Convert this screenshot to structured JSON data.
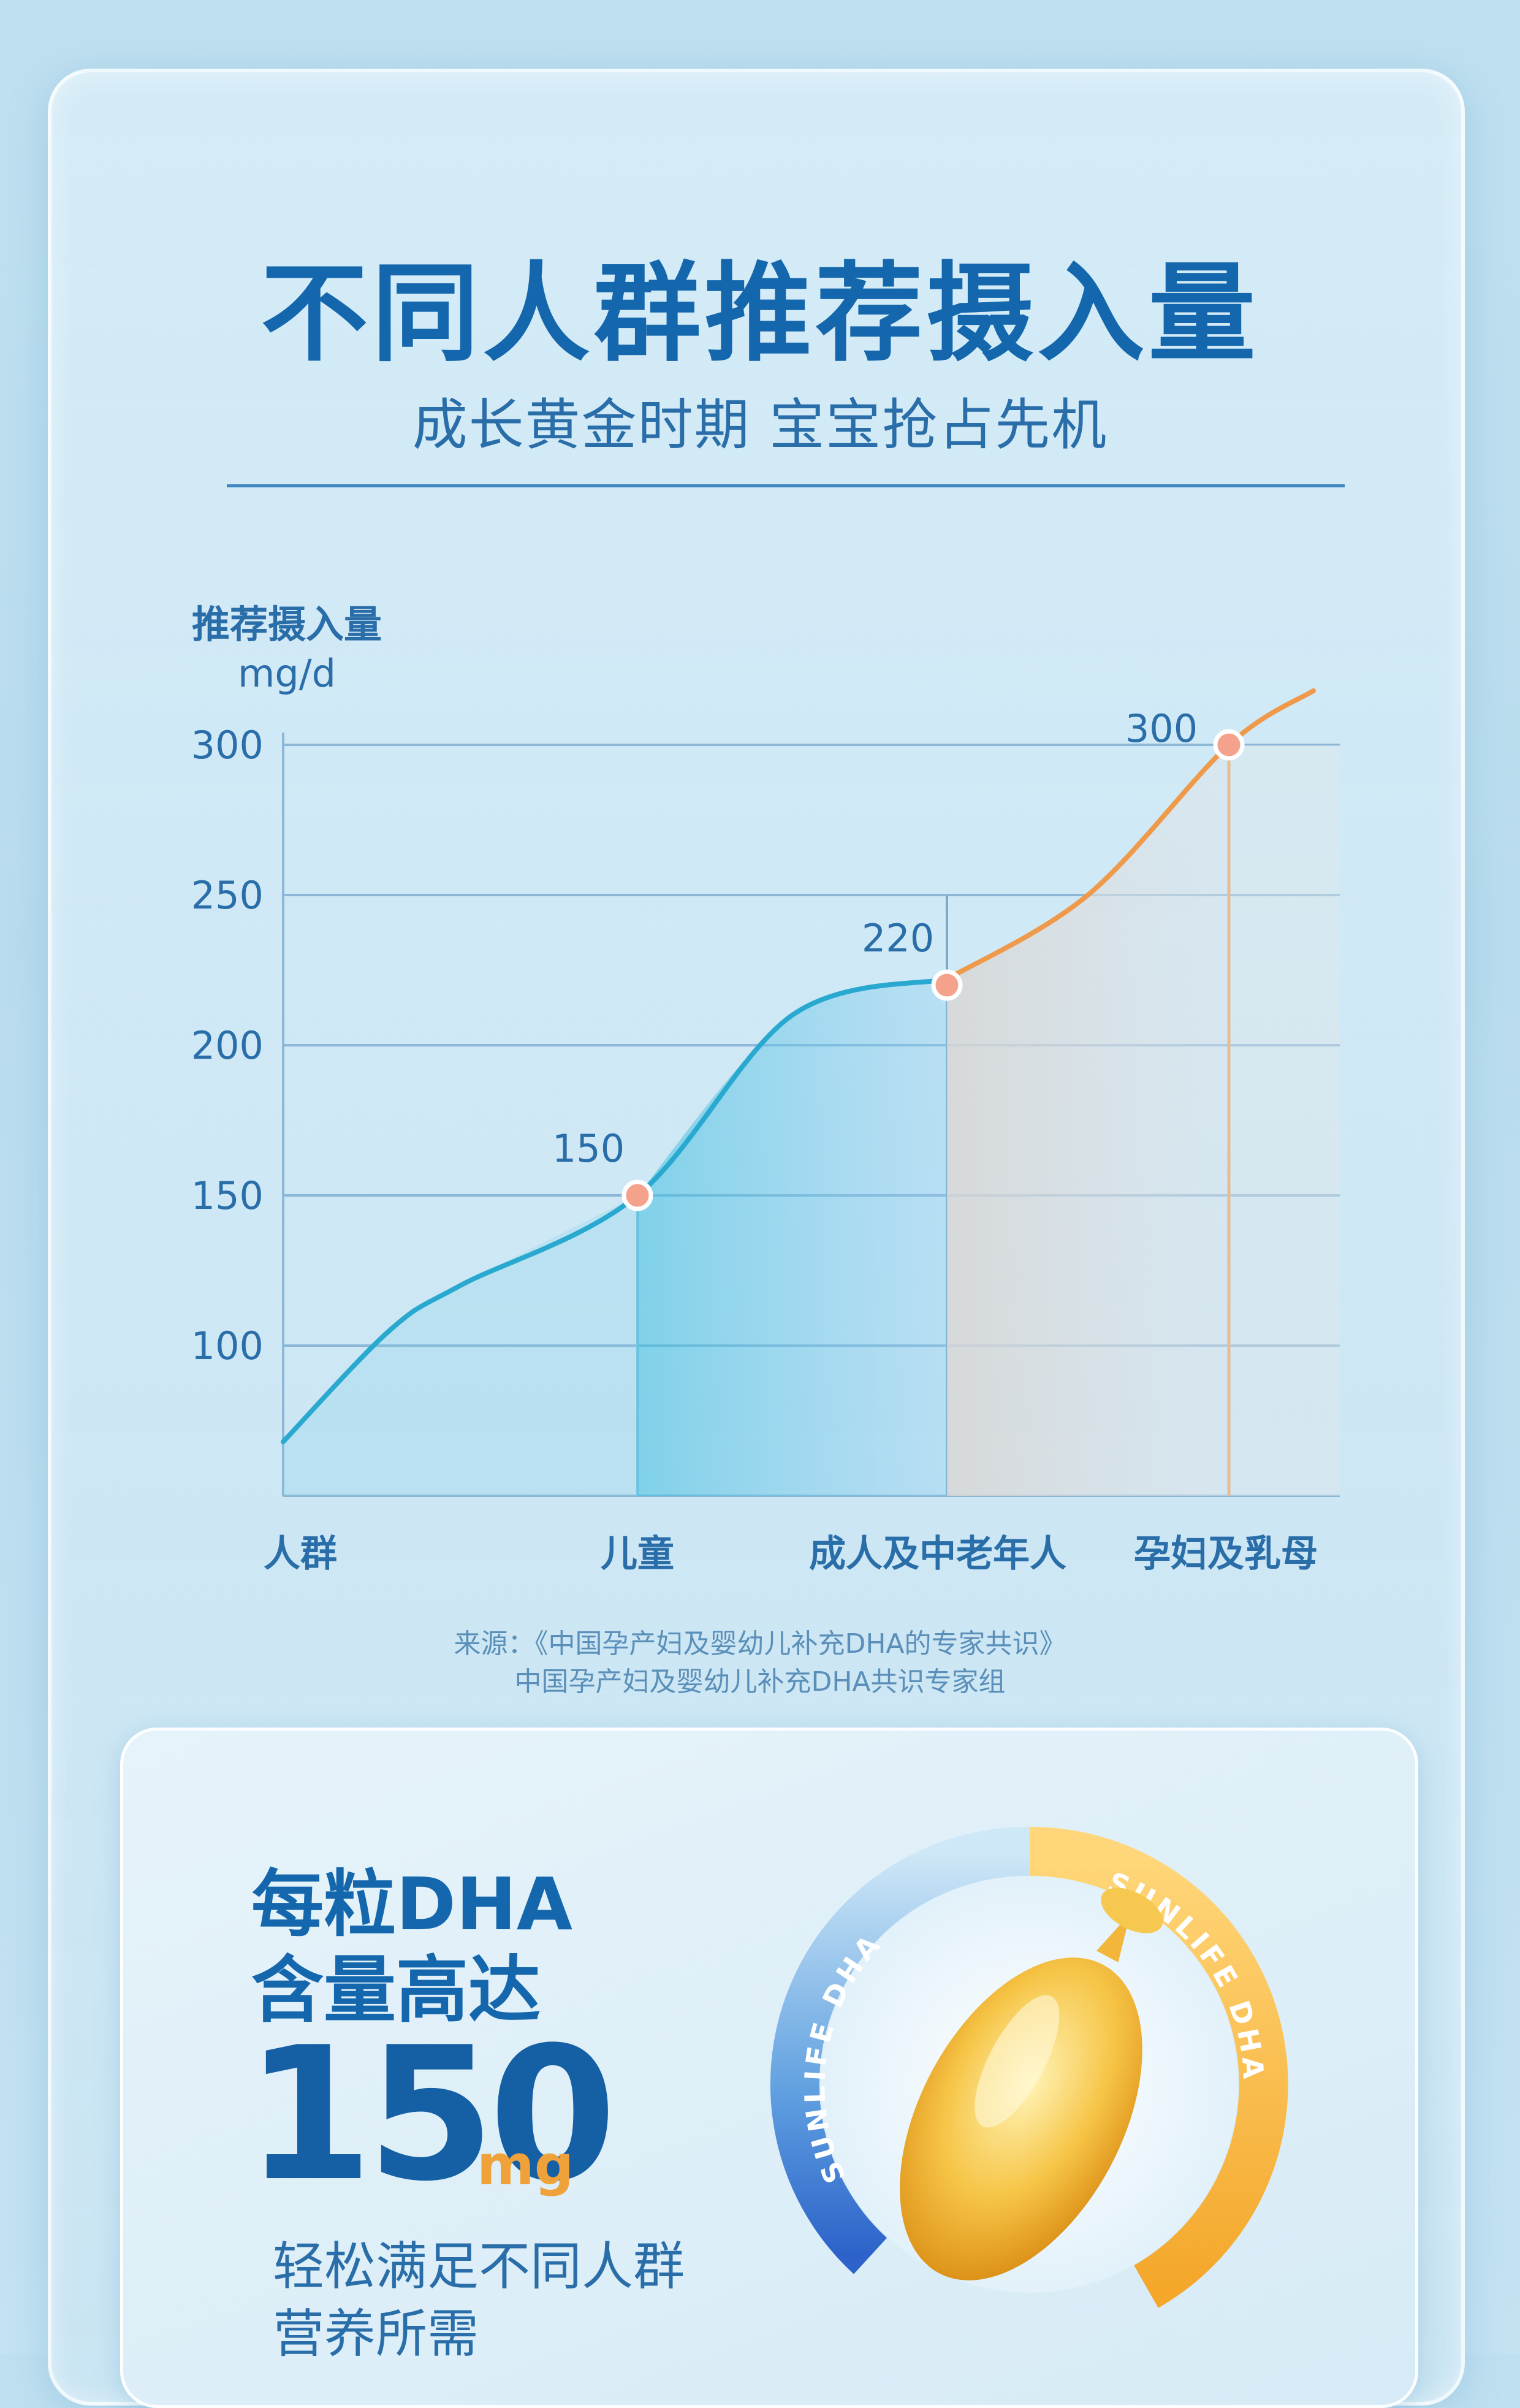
{
  "title": "不同人群推荐摄入量",
  "subtitle": "成长黄金时期 宝宝抢占先机",
  "source": {
    "line1": "来源：《中国孕产妇及婴幼儿补充DHA的专家共识》",
    "line2": "中国孕产妇及婴幼儿补充DHA共识专家组"
  },
  "card": {
    "line1": "每粒DHA",
    "line2": "含量高达",
    "number": "150",
    "unit": "mg",
    "benefit1": "轻松满足不同人群",
    "benefit2": "营养所需"
  },
  "capsule": {
    "ring_text_left": "SUNLIFE DHA",
    "ring_text_right": "SUNLIFE DHA"
  },
  "chart_data": {
    "type": "line",
    "title": "",
    "ylabel": "推荐摄入量",
    "yunit": "mg/d",
    "ylim": [
      50,
      300
    ],
    "yticks": [
      100,
      150,
      200,
      250,
      300
    ],
    "categories": [
      "人群",
      "儿童",
      "成人及中老年人",
      "孕妇及乳母"
    ],
    "points": [
      {
        "category": "儿童",
        "value": 150,
        "label": "150"
      },
      {
        "category": "成人及中老年人",
        "value": 220,
        "label": "220"
      },
      {
        "category": "孕妇及乳母",
        "value": 300,
        "label": "300"
      }
    ],
    "curve": [
      {
        "x": 0,
        "y": 68
      },
      {
        "x": 0.3,
        "y": 105
      },
      {
        "x": 0.5,
        "y": 120
      },
      {
        "x": 1,
        "y": 150
      },
      {
        "x": 1.5,
        "y": 210
      },
      {
        "x": 2,
        "y": 222
      },
      {
        "x": 2.5,
        "y": 250
      },
      {
        "x": 3,
        "y": 300
      },
      {
        "x": 3.3,
        "y": 318
      }
    ],
    "grid": true,
    "colors": {
      "curve_left": "#2aa9d0",
      "curve_right": "#ef9a4a",
      "marker": "#f4a28c",
      "grid": "#8cb7d6",
      "axis_text": "#2a6ea9"
    }
  }
}
